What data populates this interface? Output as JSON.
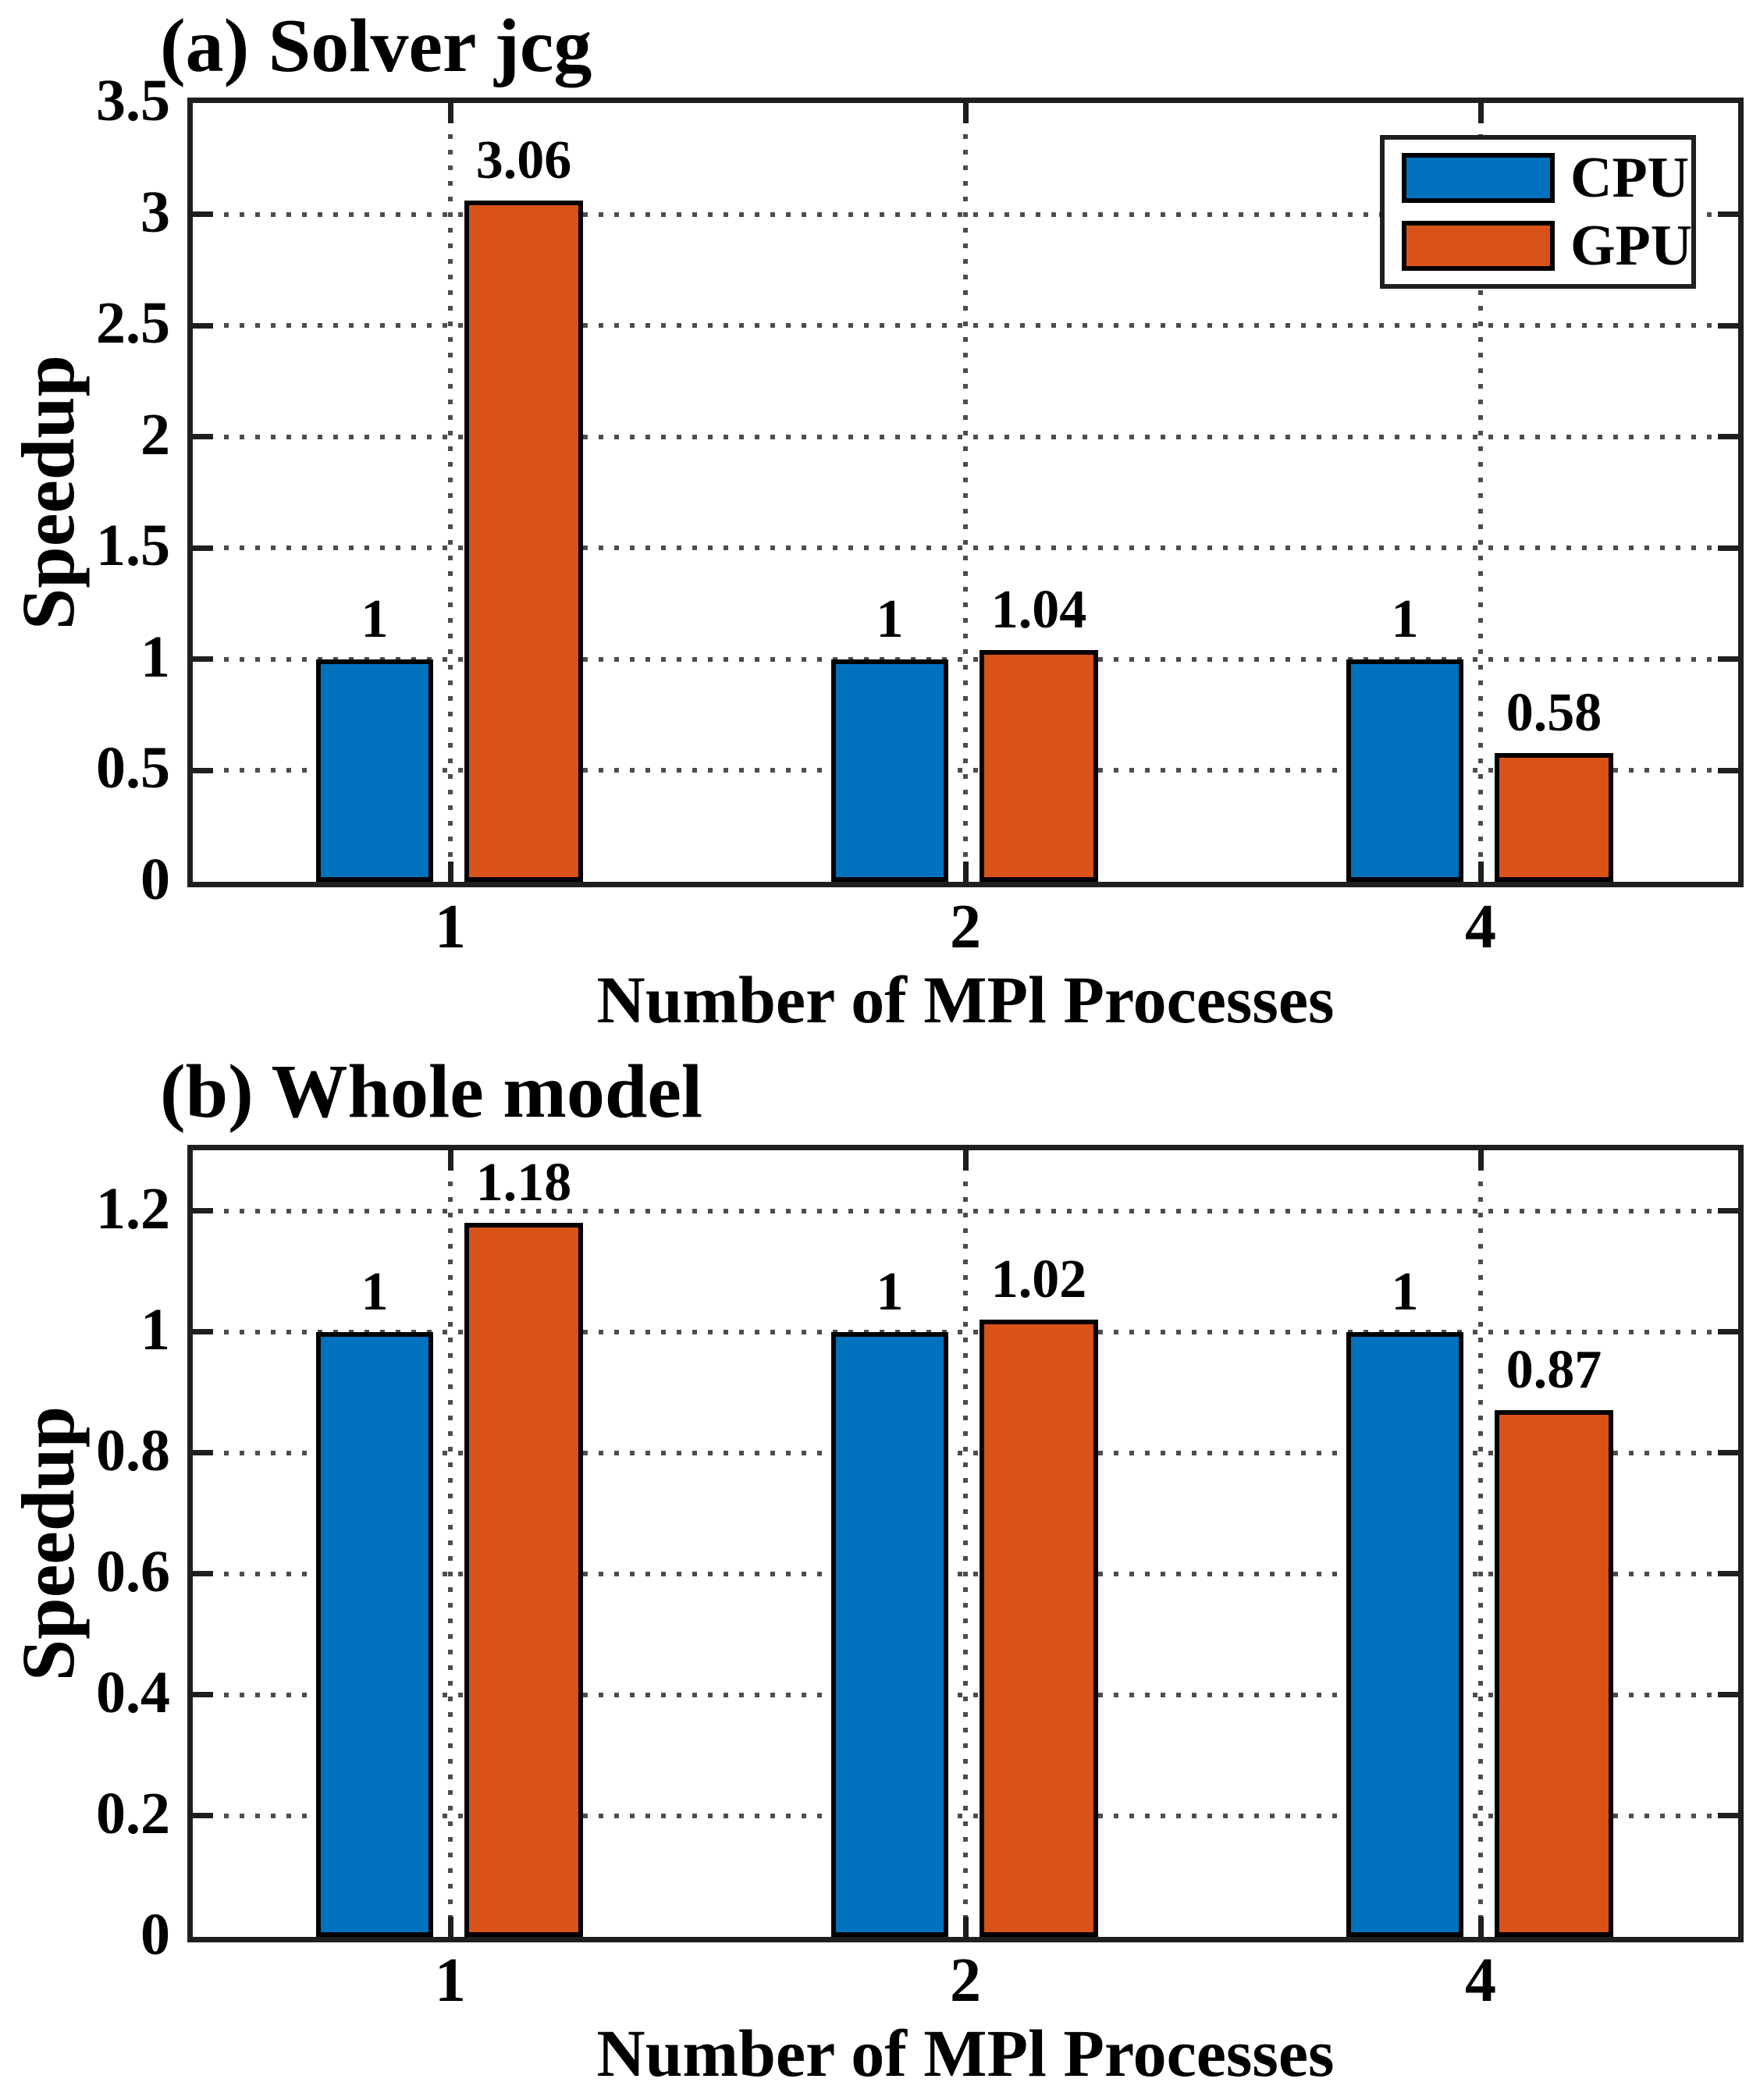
{
  "figure": {
    "background": "#ffffff"
  },
  "styles": {
    "cpu_color": "#0072BD",
    "gpu_color": "#D95319",
    "axis_color": "#1f1f1f",
    "grid_color": "#4d4d4d",
    "bar_border_color": "#000000",
    "text_color": "#000000"
  },
  "legend": {
    "items": [
      {
        "label": "CPU",
        "color": "#0072BD"
      },
      {
        "label": "GPU",
        "color": "#D95319"
      }
    ]
  },
  "chart_data": [
    {
      "type": "bar",
      "panel_label": "a",
      "title": "(a) Solver jcg",
      "xlabel": "Number of MPl Processes",
      "ylabel": "Speedup",
      "categories": [
        "1",
        "2",
        "4"
      ],
      "series": [
        {
          "name": "CPU",
          "color": "#0072BD",
          "values": [
            1,
            1,
            1
          ],
          "value_labels": [
            "1",
            "1",
            "1"
          ]
        },
        {
          "name": "GPU",
          "color": "#D95319",
          "values": [
            3.06,
            1.04,
            0.58
          ],
          "value_labels": [
            "3.06",
            "1.04",
            "0.58"
          ]
        }
      ],
      "ylim": [
        0,
        3.5
      ],
      "yticks": [
        0,
        0.5,
        1,
        1.5,
        2,
        2.5,
        3,
        3.5
      ],
      "ytick_labels": [
        "0",
        "0.5",
        "1",
        "1.5",
        "2",
        "2.5",
        "3",
        "3.5"
      ],
      "grid": true,
      "legend_visible": true,
      "legend_position": "top-right"
    },
    {
      "type": "bar",
      "panel_label": "b",
      "title": "(b) Whole model",
      "xlabel": "Number of MPl Processes",
      "ylabel": "Speedup",
      "categories": [
        "1",
        "2",
        "4"
      ],
      "series": [
        {
          "name": "CPU",
          "color": "#0072BD",
          "values": [
            1,
            1,
            1
          ],
          "value_labels": [
            "1",
            "1",
            "1"
          ]
        },
        {
          "name": "GPU",
          "color": "#D95319",
          "values": [
            1.18,
            1.02,
            0.87
          ],
          "value_labels": [
            "1.18",
            "1.02",
            "0.87"
          ]
        }
      ],
      "ylim": [
        0,
        1.3
      ],
      "yticks": [
        0,
        0.2,
        0.4,
        0.6,
        0.8,
        1,
        1.2
      ],
      "ytick_labels": [
        "0",
        "0.2",
        "0.4",
        "0.6",
        "0.8",
        "1",
        "1.2"
      ],
      "grid": true,
      "legend_visible": false
    }
  ]
}
